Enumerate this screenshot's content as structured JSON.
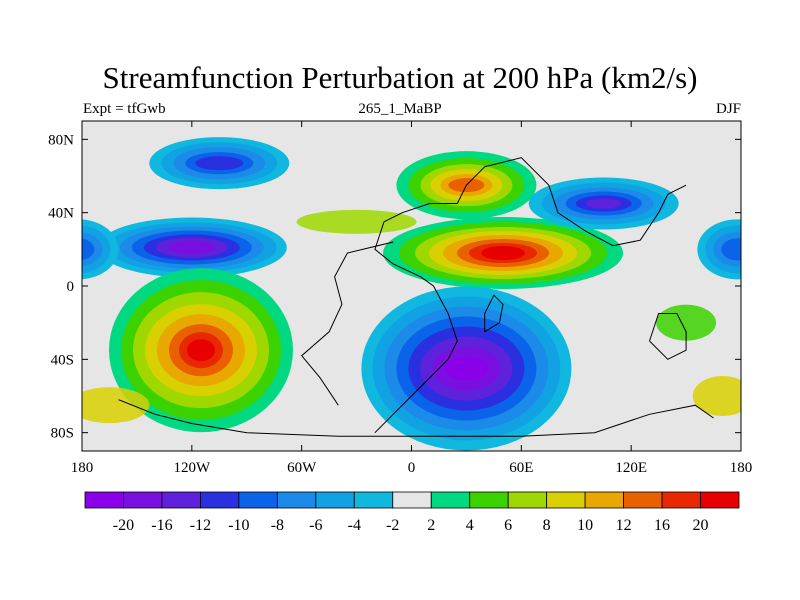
{
  "chart_data": {
    "type": "heatmap",
    "title": "Streamfunction Perturbation at 200 hPa (km2/s)",
    "left_label": "Expt = tfGwb",
    "center_label": "265_1_MaBP",
    "right_label": "DJF",
    "x_range": [
      -180,
      180
    ],
    "y_range": [
      -90,
      90
    ],
    "x_ticks": [
      {
        "value": -180,
        "label": "180"
      },
      {
        "value": -120,
        "label": "120W"
      },
      {
        "value": -60,
        "label": "60W"
      },
      {
        "value": 0,
        "label": "0"
      },
      {
        "value": 60,
        "label": "60E"
      },
      {
        "value": 120,
        "label": "120E"
      },
      {
        "value": 180,
        "label": "180"
      }
    ],
    "y_ticks": [
      {
        "value": 80,
        "label": "80N"
      },
      {
        "value": 40,
        "label": "40N"
      },
      {
        "value": 0,
        "label": "0"
      },
      {
        "value": -40,
        "label": "40S"
      },
      {
        "value": -80,
        "label": "80S"
      }
    ],
    "colorbar": {
      "levels": [
        -20,
        -16,
        -12,
        -10,
        -8,
        -6,
        -4,
        -2,
        2,
        4,
        6,
        8,
        10,
        12,
        16,
        20
      ],
      "colors": [
        "#8a00e8",
        "#7a10e0",
        "#5e22dc",
        "#2a2fe0",
        "#0a63e8",
        "#1c8ae8",
        "#10a2e2",
        "#10b8e0",
        "#e6e6e6",
        "#00d882",
        "#3cd200",
        "#9ed800",
        "#d8d000",
        "#e8a800",
        "#e86000",
        "#e82800",
        "#e80000"
      ]
    },
    "field_features": [
      {
        "name": "north-pacific-low",
        "lon": -105,
        "lat": 67,
        "peak": -12
      },
      {
        "name": "subtropical-pacific-low",
        "lon": -120,
        "lat": 21,
        "peak": -20
      },
      {
        "name": "south-pacific-high",
        "lon": -115,
        "lat": -35,
        "peak": 20
      },
      {
        "name": "north-atlantic-high",
        "lon": 30,
        "lat": 55,
        "peak": 16
      },
      {
        "name": "subtropical-asia-high",
        "lon": 50,
        "lat": 18,
        "peak": 20
      },
      {
        "name": "central-asia-low",
        "lon": 105,
        "lat": 45,
        "peak": -20
      },
      {
        "name": "south-indian-low",
        "lon": 30,
        "lat": -45,
        "peak": -20
      },
      {
        "name": "dateline-low",
        "lon": 178,
        "lat": 20,
        "peak": -16
      }
    ]
  }
}
